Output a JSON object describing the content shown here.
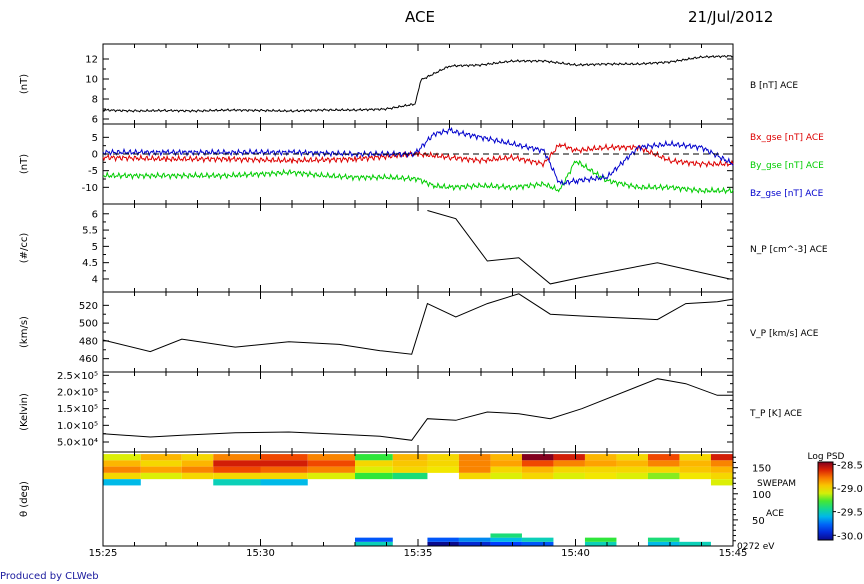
{
  "header": {
    "title": "ACE",
    "date": "21/Jul/2012"
  },
  "footer": "Produced by CLWeb",
  "colors": {
    "bx": "#dd0000",
    "by": "#00cc00",
    "bz": "#0000cc",
    "trace": "#000000"
  },
  "chart_data": [
    {
      "type": "line",
      "ylabel": "(nT)",
      "series_label": "B [nT] ACE",
      "ylim": [
        5.5,
        13.5
      ],
      "yticks": [
        6,
        8,
        10,
        12
      ],
      "series": [
        {
          "x": [
            0,
            1,
            2,
            3,
            4,
            5,
            6,
            7,
            8,
            9,
            9.9,
            10.1,
            11,
            12,
            13,
            14,
            15,
            16,
            17,
            18,
            19,
            20
          ],
          "values": [
            6.9,
            6.8,
            6.85,
            6.8,
            6.9,
            6.85,
            6.8,
            6.9,
            6.9,
            7.0,
            7.5,
            9.9,
            11.3,
            11.4,
            11.8,
            11.8,
            11.4,
            11.5,
            11.5,
            11.7,
            12.2,
            12.3
          ]
        }
      ]
    },
    {
      "type": "line",
      "ylabel": "(nT)",
      "ylim": [
        -15,
        9
      ],
      "yticks": [
        5,
        0,
        -5,
        -10
      ],
      "series": [
        {
          "name": "Bx_gse [nT] ACE",
          "color": "#dd0000",
          "x": [
            0,
            2,
            4,
            6,
            8,
            10,
            11,
            12,
            13,
            14,
            14.5,
            15,
            16,
            17,
            18,
            19,
            20
          ],
          "values": [
            -1,
            -1.5,
            -1.5,
            -2,
            -1.5,
            0,
            -1,
            -2,
            -1,
            -3,
            3,
            1,
            2,
            2,
            -2,
            -3,
            -3
          ]
        },
        {
          "name": "By_gse [nT] ACE",
          "color": "#00cc00",
          "x": [
            0,
            2,
            4,
            6,
            7,
            8,
            9,
            10,
            10.5,
            11,
            12,
            13,
            14,
            14.5,
            15,
            16,
            17,
            18,
            19,
            20
          ],
          "values": [
            -6.5,
            -6.5,
            -6.5,
            -5.5,
            -6.5,
            -7,
            -7,
            -7.5,
            -9.5,
            -10,
            -9.5,
            -10,
            -9,
            -11,
            -2,
            -8,
            -10,
            -10,
            -11,
            -11
          ]
        },
        {
          "name": "Bz_gse [nT] ACE",
          "color": "#0000cc",
          "x": [
            0,
            2,
            4,
            6,
            8,
            9.9,
            10.5,
            11,
            12,
            13,
            14,
            14.5,
            15,
            16,
            17,
            18,
            19,
            20
          ],
          "values": [
            0.5,
            0.5,
            0.5,
            0.5,
            0,
            0,
            6,
            7,
            5,
            3,
            1,
            -9,
            -8,
            -7,
            2,
            3,
            2,
            -3
          ]
        }
      ]
    },
    {
      "type": "line",
      "ylabel": "(#/cc)",
      "series_label": "N_P [cm^-3] ACE",
      "ylim": [
        3.6,
        6.3
      ],
      "yticks": [
        6.0,
        5.5,
        5.0,
        4.5,
        4.0
      ],
      "series": [
        {
          "x": [
            10.3,
            11.2,
            12.2,
            13.2,
            14.2,
            15.2,
            17.6,
            19.9
          ],
          "values": [
            6.1,
            5.85,
            4.55,
            4.65,
            3.85,
            4.05,
            4.5,
            4.0
          ]
        }
      ]
    },
    {
      "type": "line",
      "ylabel": "(km/s)",
      "series_label": "V_P [km/s] ACE",
      "ylim": [
        445,
        535
      ],
      "yticks": [
        520,
        500,
        480,
        460
      ],
      "series": [
        {
          "x": [
            0,
            1.5,
            2.5,
            4.2,
            5.9,
            7.5,
            8.8,
            9.8,
            10.3,
            11.2,
            12.2,
            13.2,
            14.2,
            15.2,
            17.6,
            18.5,
            19.5,
            20
          ],
          "values": [
            481,
            468,
            482,
            473,
            479,
            476,
            469,
            465,
            522,
            507,
            522,
            533,
            510,
            508,
            504,
            522,
            524,
            527
          ]
        }
      ]
    },
    {
      "type": "line",
      "ylabel": "(Kelvin)",
      "series_label": "T_P [K] ACE",
      "ylim": [
        20000,
        260000
      ],
      "yticks": [
        250000,
        200000,
        150000,
        100000,
        50000
      ],
      "ytick_labels": [
        "2.5×10⁵",
        "2.0×10⁵",
        "1.5×10⁵",
        "1.0×10⁵",
        "5.0×10⁴"
      ],
      "series": [
        {
          "x": [
            0,
            1.5,
            2.5,
            4.2,
            5.9,
            7.5,
            8.8,
            9.8,
            10.3,
            11.2,
            12.2,
            13.2,
            14.2,
            15.2,
            17.6,
            18.5,
            19.5,
            20
          ],
          "values": [
            75000,
            65000,
            70000,
            78000,
            80000,
            73000,
            67000,
            55000,
            120000,
            115000,
            140000,
            135000,
            120000,
            150000,
            240000,
            225000,
            190000,
            190000
          ]
        }
      ]
    },
    {
      "type": "heatmap",
      "ylabel": "θ (deg)",
      "instrument": "SWEPAM",
      "source": "ACE",
      "energy": "0272 eV",
      "colorbar_title": "Log PSD",
      "colorbar_ticks": [
        -28.5,
        -29.0,
        -29.5,
        -30.0
      ],
      "colorbar_tick_labels": [
        "-28.5",
        "-29.0",
        "-29.5",
        "-30.0"
      ],
      "ylim": [
        0,
        180
      ],
      "yticks": [
        150,
        100,
        50
      ],
      "xticks": [
        "15:25",
        "15:30",
        "15:35",
        "15:40",
        "15:45"
      ],
      "xlim_minutes": [
        0,
        20
      ],
      "theta_bins": [
        {
          "from": 164,
          "to": 176
        },
        {
          "from": 152,
          "to": 164
        },
        {
          "from": 140,
          "to": 152
        },
        {
          "from": 128,
          "to": 140
        },
        {
          "from": 116,
          "to": 128
        },
        {
          "from": 0,
          "to": 8
        },
        {
          "from": 8,
          "to": 16
        },
        {
          "from": 16,
          "to": 24
        }
      ],
      "columns": [
        {
          "t0": 0,
          "t1": 1.2,
          "cells": [
            -29.1,
            -28.9,
            -28.8,
            -29.0,
            -29.6,
            null,
            null,
            null
          ]
        },
        {
          "t0": 1.2,
          "t1": 2.5,
          "cells": [
            -28.9,
            -29.0,
            -28.85,
            -29.1,
            null,
            null,
            null,
            null
          ]
        },
        {
          "t0": 2.5,
          "t1": 3.5,
          "cells": [
            -29.0,
            -28.9,
            -28.8,
            -29.0,
            null,
            null,
            null,
            null
          ]
        },
        {
          "t0": 3.5,
          "t1": 5.0,
          "cells": [
            -28.8,
            -28.6,
            -28.7,
            -29.0,
            -29.5,
            null,
            null,
            null
          ]
        },
        {
          "t0": 5.0,
          "t1": 6.5,
          "cells": [
            -28.7,
            -28.6,
            -28.75,
            -29.0,
            -29.6,
            null,
            null,
            null
          ]
        },
        {
          "t0": 6.5,
          "t1": 8.0,
          "cells": [
            -28.8,
            -28.7,
            -28.8,
            -29.1,
            null,
            null,
            null,
            null
          ]
        },
        {
          "t0": 8.0,
          "t1": 9.2,
          "cells": [
            -29.3,
            -29.0,
            -29.1,
            -29.3,
            null,
            -29.5,
            -29.8,
            null
          ]
        },
        {
          "t0": 9.2,
          "t1": 10.3,
          "cells": [
            -28.9,
            -28.95,
            -29.0,
            -29.4,
            null,
            null,
            null,
            null
          ]
        },
        {
          "t0": 10.3,
          "t1": 11.3,
          "cells": [
            -29.0,
            -29.0,
            -29.05,
            null,
            null,
            -30.1,
            -29.8,
            null
          ]
        },
        {
          "t0": 11.3,
          "t1": 12.3,
          "cells": [
            -28.8,
            -28.8,
            -28.8,
            -29.0,
            null,
            -29.95,
            -29.7,
            null
          ]
        },
        {
          "t0": 12.3,
          "t1": 13.3,
          "cells": [
            -28.9,
            -28.85,
            -29.0,
            -29.1,
            null,
            -29.85,
            -29.6,
            -29.4
          ]
        },
        {
          "t0": 13.3,
          "t1": 14.3,
          "cells": [
            -28.45,
            -28.7,
            -28.9,
            -29.0,
            null,
            -29.8,
            -29.5,
            null
          ]
        },
        {
          "t0": 14.3,
          "t1": 15.3,
          "cells": [
            -28.6,
            -28.8,
            -29.0,
            -29.1,
            null,
            null,
            null,
            null
          ]
        },
        {
          "t0": 15.3,
          "t1": 16.3,
          "cells": [
            -28.9,
            -28.85,
            -29.0,
            -29.05,
            null,
            -29.5,
            -29.3,
            null
          ]
        },
        {
          "t0": 16.3,
          "t1": 17.3,
          "cells": [
            -29.0,
            -28.9,
            -29.0,
            -29.1,
            null,
            null,
            null,
            null
          ]
        },
        {
          "t0": 17.3,
          "t1": 18.3,
          "cells": [
            -28.7,
            -28.8,
            -29.0,
            -29.2,
            null,
            -29.6,
            -29.4,
            null
          ]
        },
        {
          "t0": 18.3,
          "t1": 19.3,
          "cells": [
            -29.0,
            -28.9,
            -28.95,
            -29.05,
            null,
            -29.5,
            null,
            null
          ]
        },
        {
          "t0": 19.3,
          "t1": 20.0,
          "cells": [
            -28.6,
            -28.8,
            -28.9,
            -29.0,
            -29.1,
            null,
            null,
            null
          ]
        }
      ]
    }
  ]
}
